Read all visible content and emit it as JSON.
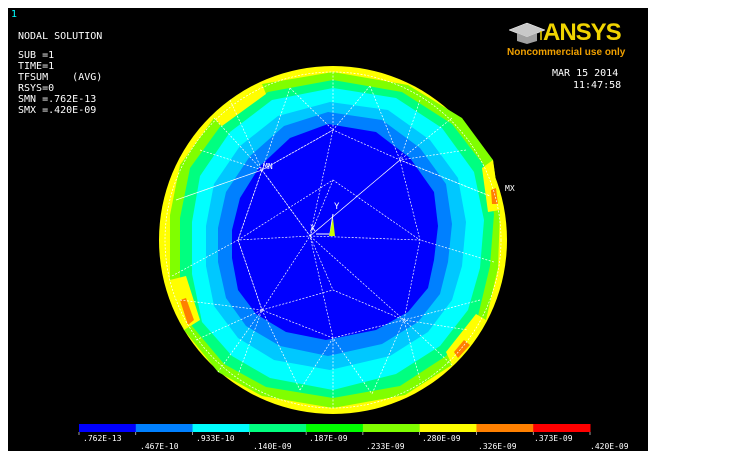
{
  "window_number": "1",
  "info": {
    "title": "NODAL SOLUTION",
    "lines": [
      "SUB =1",
      "TIME=1",
      "TFSUM    (AVG)",
      "RSYS=0",
      "SMN =.762E-13",
      "SMX =.420E-09"
    ]
  },
  "logo": {
    "name": "ANSYS",
    "tagline": "Noncommercial use only",
    "colors": {
      "brand": "#f0d400",
      "tagline": "#f0a000"
    }
  },
  "date": "MAR 15 2014",
  "time": "11:47:58",
  "plot_labels": {
    "min": "MN",
    "max": "MX",
    "axis_x": "X",
    "axis_y": "Y"
  },
  "legend": {
    "colors": [
      "#0000ff",
      "#0080ff",
      "#00ffff",
      "#00ff80",
      "#00ff00",
      "#80ff00",
      "#ffff00",
      "#ff8000",
      "#ff0000"
    ],
    "labels_top": [
      ".762E-13",
      ".933E-10",
      ".187E-09",
      ".280E-09",
      ".373E-09"
    ],
    "labels_bottom": [
      ".467E-10",
      ".140E-09",
      ".233E-09",
      ".326E-09",
      ".420E-09"
    ]
  },
  "contour_colors": {
    "band1": "#0000ff",
    "band2": "#0080ff",
    "band3": "#00c8ff",
    "band4": "#00ffff",
    "band5": "#00ff80",
    "band6": "#80ff00",
    "band7": "#ffff00",
    "band8": "#ff8000",
    "mesh": "#ffffff"
  }
}
